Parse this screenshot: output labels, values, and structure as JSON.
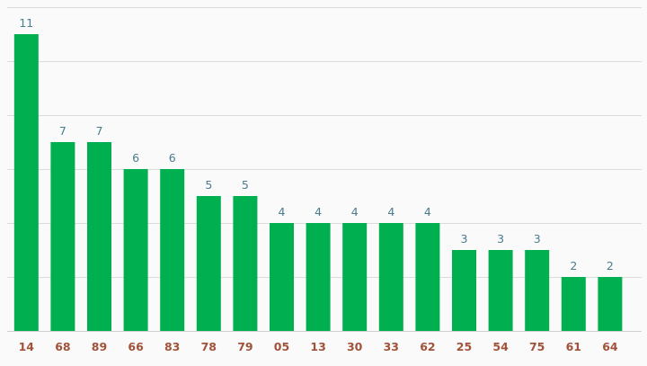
{
  "chart_data": {
    "type": "bar",
    "categories": [
      "14",
      "68",
      "89",
      "66",
      "83",
      "78",
      "79",
      "05",
      "13",
      "30",
      "33",
      "62",
      "25",
      "54",
      "75",
      "61",
      "64"
    ],
    "values": [
      11,
      7,
      7,
      6,
      6,
      5,
      5,
      4,
      4,
      4,
      4,
      4,
      3,
      3,
      3,
      2,
      2
    ],
    "title": "",
    "xlabel": "",
    "ylabel": "",
    "ylim": [
      0,
      12
    ],
    "grid": true,
    "data_labels": true,
    "colors": {
      "bar": "#00b050",
      "value_label": "#4a7c8c",
      "category_label": "#a0523a"
    }
  }
}
